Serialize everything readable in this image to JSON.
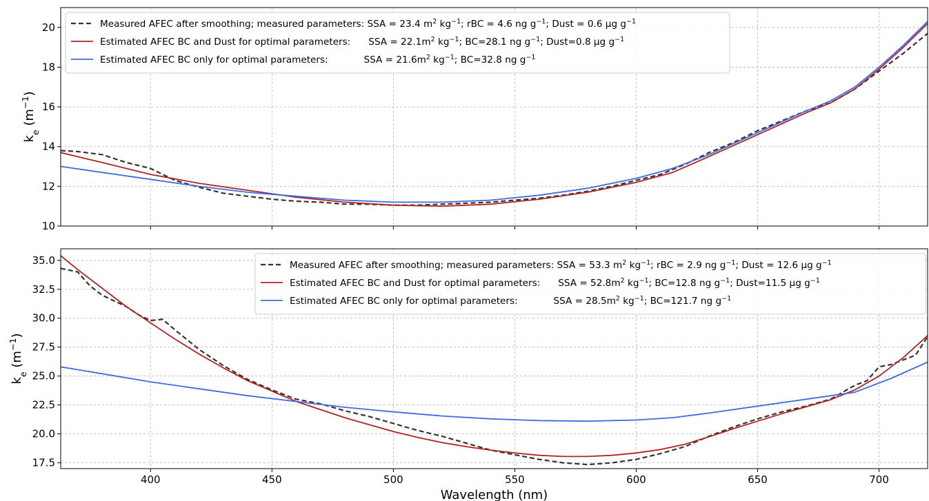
{
  "chart_data": [
    {
      "type": "line",
      "xlabel": "",
      "ylabel": "k_e (m^-1)",
      "xlim": [
        363,
        720
      ],
      "ylim": [
        10,
        21
      ],
      "grid": true,
      "legend_placement": "top-left",
      "xticks": [
        400,
        450,
        500,
        550,
        600,
        650,
        700
      ],
      "yticks": [
        10,
        12,
        14,
        16,
        18,
        20
      ],
      "series": [
        {
          "name": "Measured AFEC after smoothing; measured parameters: SSA = 23.4 m² kg⁻¹; rBC = 4.6 ng g⁻¹; Dust = 0.6 μg g⁻¹",
          "color": "#333333",
          "dash": "dashed",
          "x": [
            363,
            370,
            380,
            390,
            400,
            410,
            420,
            430,
            440,
            450,
            460,
            470,
            480,
            490,
            500,
            510,
            520,
            530,
            540,
            550,
            560,
            570,
            580,
            590,
            600,
            610,
            620,
            630,
            640,
            650,
            660,
            670,
            680,
            690,
            700,
            710,
            720
          ],
          "y": [
            13.8,
            13.75,
            13.6,
            13.2,
            12.9,
            12.3,
            11.95,
            11.65,
            11.5,
            11.35,
            11.25,
            11.2,
            11.1,
            11.1,
            11.05,
            11.05,
            11.1,
            11.15,
            11.2,
            11.3,
            11.4,
            11.55,
            11.75,
            12.0,
            12.3,
            12.6,
            13.1,
            13.7,
            14.2,
            14.8,
            15.3,
            15.8,
            16.2,
            16.9,
            17.8,
            18.7,
            19.7
          ]
        },
        {
          "name": "Estimated AFEC BC and Dust for optimal parameters:      SSA = 22.1m² kg⁻¹; BC=28.1 ng g⁻¹; Dust=0.8 μg g⁻¹",
          "color": "#b22222",
          "dash": "solid",
          "x": [
            363,
            380,
            400,
            420,
            440,
            460,
            480,
            500,
            520,
            540,
            560,
            580,
            600,
            615,
            630,
            650,
            670,
            680,
            690,
            700,
            710,
            720
          ],
          "y": [
            13.7,
            13.2,
            12.6,
            12.15,
            11.8,
            11.45,
            11.2,
            11.05,
            11.0,
            11.1,
            11.35,
            11.7,
            12.2,
            12.7,
            13.5,
            14.6,
            15.7,
            16.2,
            16.9,
            17.9,
            19.0,
            20.2
          ]
        },
        {
          "name": "Estimated AFEC BC only for optimal parameters:            SSA = 21.6m² kg⁻¹; BC=32.8 ng g⁻¹",
          "color": "#4169e1",
          "dash": "solid",
          "x": [
            363,
            380,
            400,
            420,
            440,
            460,
            480,
            500,
            520,
            540,
            560,
            580,
            600,
            615,
            630,
            650,
            670,
            680,
            690,
            700,
            710,
            720
          ],
          "y": [
            13.0,
            12.7,
            12.35,
            12.0,
            11.7,
            11.5,
            11.3,
            11.2,
            11.2,
            11.3,
            11.55,
            11.9,
            12.4,
            12.9,
            13.6,
            14.7,
            15.8,
            16.3,
            17.0,
            18.0,
            19.1,
            20.3
          ]
        }
      ]
    },
    {
      "type": "line",
      "xlabel": "Wavelength (nm)",
      "ylabel": "k_e (m^-1)",
      "xlim": [
        363,
        720
      ],
      "ylim": [
        17,
        36
      ],
      "grid": true,
      "legend_placement": "top-right",
      "xticks": [
        400,
        450,
        500,
        550,
        600,
        650,
        700
      ],
      "yticks": [
        17.5,
        20.0,
        22.5,
        25.0,
        27.5,
        30.0,
        32.5,
        35.0
      ],
      "series": [
        {
          "name": "Measured AFEC after smoothing; measured parameters: SSA = 53.3 m² kg⁻¹; rBC = 2.9 ng g⁻¹; Dust = 12.6 μg g⁻¹",
          "color": "#333333",
          "dash": "dashed",
          "x": [
            363,
            370,
            375,
            380,
            385,
            390,
            395,
            400,
            405,
            410,
            420,
            430,
            440,
            450,
            460,
            470,
            480,
            490,
            500,
            510,
            520,
            530,
            540,
            550,
            560,
            570,
            580,
            590,
            600,
            610,
            620,
            630,
            640,
            650,
            660,
            670,
            680,
            690,
            695,
            700,
            705,
            710,
            715,
            720
          ],
          "y": [
            34.3,
            34.0,
            32.8,
            32.0,
            31.5,
            31.0,
            30.3,
            29.8,
            29.9,
            29.0,
            27.3,
            25.9,
            24.7,
            23.8,
            23.0,
            22.6,
            22.0,
            21.5,
            20.9,
            20.3,
            19.8,
            19.2,
            18.6,
            18.2,
            17.8,
            17.5,
            17.35,
            17.5,
            17.8,
            18.3,
            18.9,
            19.8,
            20.6,
            21.3,
            21.9,
            22.4,
            23.0,
            24.2,
            24.6,
            25.8,
            26.0,
            26.4,
            26.8,
            28.4
          ]
        },
        {
          "name": "Estimated AFEC BC and Dust for optimal parameters:      SSA = 52.8m² kg⁻¹; BC=12.8 ng g⁻¹; Dust=11.5 μg g⁻¹",
          "color": "#b22222",
          "dash": "solid",
          "x": [
            363,
            370,
            380,
            390,
            400,
            410,
            420,
            430,
            440,
            450,
            460,
            470,
            480,
            490,
            500,
            510,
            520,
            530,
            540,
            550,
            560,
            570,
            580,
            590,
            600,
            610,
            620,
            630,
            640,
            650,
            660,
            670,
            680,
            690,
            700,
            710,
            720
          ],
          "y": [
            35.4,
            34.2,
            32.6,
            31.0,
            29.6,
            28.2,
            26.9,
            25.7,
            24.6,
            23.7,
            22.8,
            22.1,
            21.4,
            20.8,
            20.2,
            19.7,
            19.25,
            18.9,
            18.6,
            18.35,
            18.15,
            18.05,
            18.05,
            18.15,
            18.35,
            18.65,
            19.1,
            19.75,
            20.45,
            21.1,
            21.75,
            22.35,
            22.95,
            23.8,
            25.0,
            26.6,
            28.5
          ]
        },
        {
          "name": "Estimated AFEC BC only for optimal parameters:            SSA = 28.5m² kg⁻¹; BC=121.7 ng g⁻¹",
          "color": "#4169e1",
          "dash": "solid",
          "x": [
            363,
            380,
            400,
            420,
            440,
            460,
            480,
            500,
            520,
            540,
            560,
            580,
            600,
            615,
            630,
            650,
            670,
            690,
            705,
            720
          ],
          "y": [
            25.8,
            25.2,
            24.5,
            23.9,
            23.3,
            22.8,
            22.3,
            21.9,
            21.55,
            21.3,
            21.15,
            21.1,
            21.2,
            21.4,
            21.8,
            22.4,
            23.0,
            23.6,
            24.8,
            26.2
          ]
        }
      ]
    }
  ]
}
